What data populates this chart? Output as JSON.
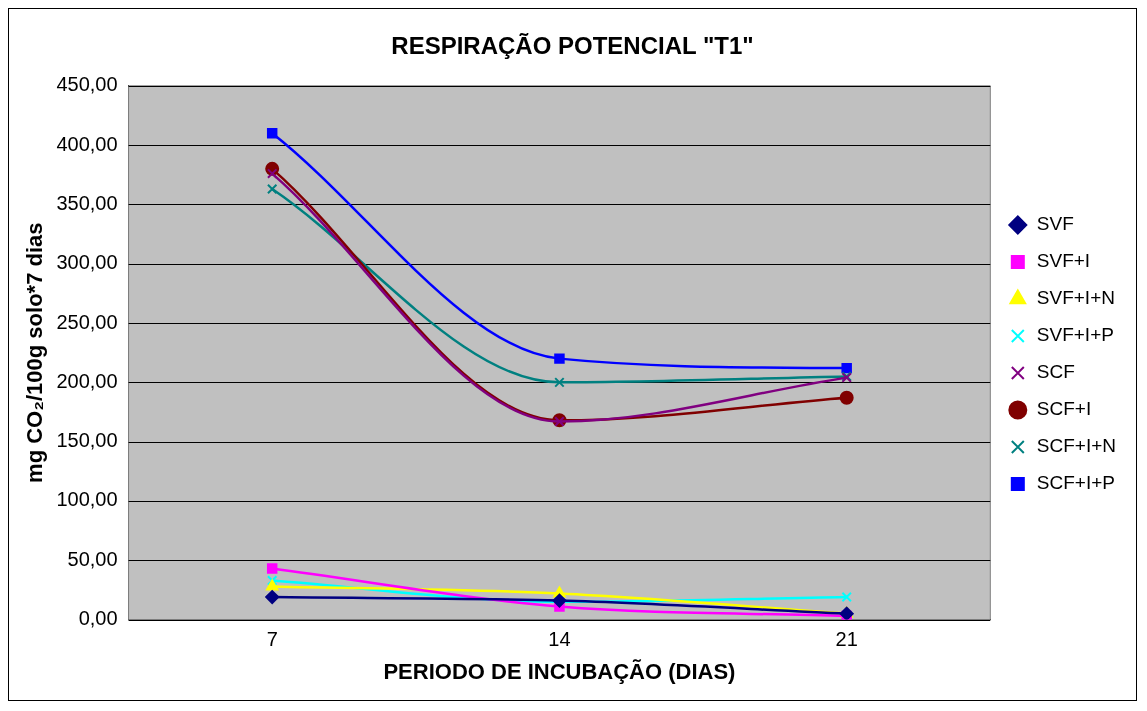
{
  "chart_data": {
    "type": "line",
    "title": "RESPIRAÇÃO POTENCIAL \"T1\"",
    "xlabel": "PERIODO DE INCUBAÇÃO (DIAS)",
    "ylabel": "mg CO₂/100g solo*7 dias",
    "categories": [
      "7",
      "14",
      "21"
    ],
    "ylim": [
      0,
      450
    ],
    "yticks": [
      {
        "value": 0,
        "label": "0,00"
      },
      {
        "value": 50,
        "label": "50,00"
      },
      {
        "value": 100,
        "label": "100,00"
      },
      {
        "value": 150,
        "label": "150,00"
      },
      {
        "value": 200,
        "label": "200,00"
      },
      {
        "value": 250,
        "label": "250,00"
      },
      {
        "value": 300,
        "label": "300,00"
      },
      {
        "value": 350,
        "label": "350,00"
      },
      {
        "value": 400,
        "label": "400,00"
      },
      {
        "value": 450,
        "label": "450,00"
      }
    ],
    "grid": "y",
    "legend": "right",
    "series": [
      {
        "name": "SVF",
        "color": "#000080",
        "marker": "diamond",
        "values": [
          19,
          16,
          5
        ]
      },
      {
        "name": "SVF+I",
        "color": "#ff00ff",
        "marker": "square",
        "values": [
          43,
          11,
          3
        ]
      },
      {
        "name": "SVF+I+N",
        "color": "#ffff00",
        "marker": "triangle",
        "values": [
          28,
          22,
          5
        ]
      },
      {
        "name": "SVF+I+P",
        "color": "#00ffff",
        "marker": "cross",
        "values": [
          33,
          15,
          19
        ]
      },
      {
        "name": "SCF",
        "color": "#800080",
        "marker": "cross",
        "values": [
          376,
          167,
          204
        ]
      },
      {
        "name": "SCF+I",
        "color": "#800000",
        "marker": "circle",
        "values": [
          380,
          168,
          187
        ]
      },
      {
        "name": "SCF+I+N",
        "color": "#008080",
        "marker": "cross",
        "values": [
          363,
          200,
          205
        ]
      },
      {
        "name": "SCF+I+P",
        "color": "#0000ff",
        "marker": "square",
        "values": [
          410,
          220,
          212
        ]
      }
    ]
  }
}
